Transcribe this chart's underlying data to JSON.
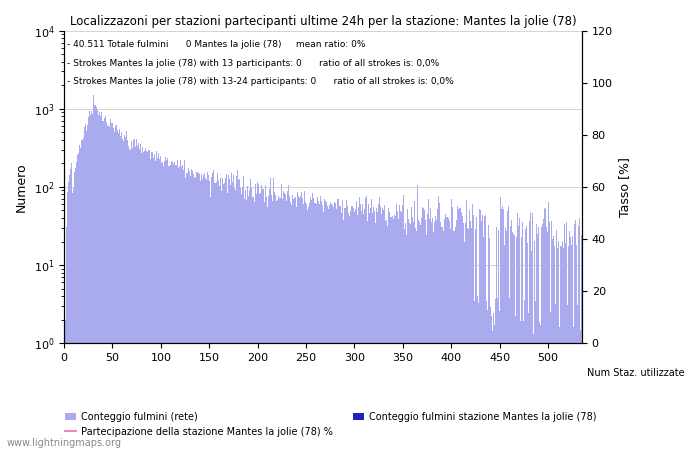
{
  "title": "Localizzazoni per stazioni partecipanti ultime 24h per la stazione: Mantes la jolie (78)",
  "ylabel_left": "Numero",
  "ylabel_right": "Tasso [%]",
  "annotation_line1": "- 40.511 Totale fulmini      0 Mantes la jolie (78)     mean ratio: 0%",
  "annotation_line2": "- Strokes Mantes la jolie (78) with 13 participants: 0      ratio of all strokes is: 0,0%",
  "annotation_line3": "- Strokes Mantes la jolie (78) with 13-24 participants: 0      ratio of all strokes is: 0,0%",
  "bar_color_light": "#aaaaee",
  "bar_color_dark": "#2222bb",
  "line_color": "#ee88bb",
  "watermark": "www.lightningmaps.org",
  "legend1": "Conteggio fulmini (rete)",
  "legend2": "Conteggio fulmini stazione Mantes la jolie (78)",
  "legend3": "Partecipazione della stazione Mantes la jolie (78) %",
  "legend4": "Num Staz. utilizzate",
  "xlim": [
    0,
    535
  ],
  "ylim_right": [
    0,
    120
  ],
  "xticks": [
    0,
    50,
    100,
    150,
    200,
    250,
    300,
    350,
    400,
    450,
    500
  ]
}
